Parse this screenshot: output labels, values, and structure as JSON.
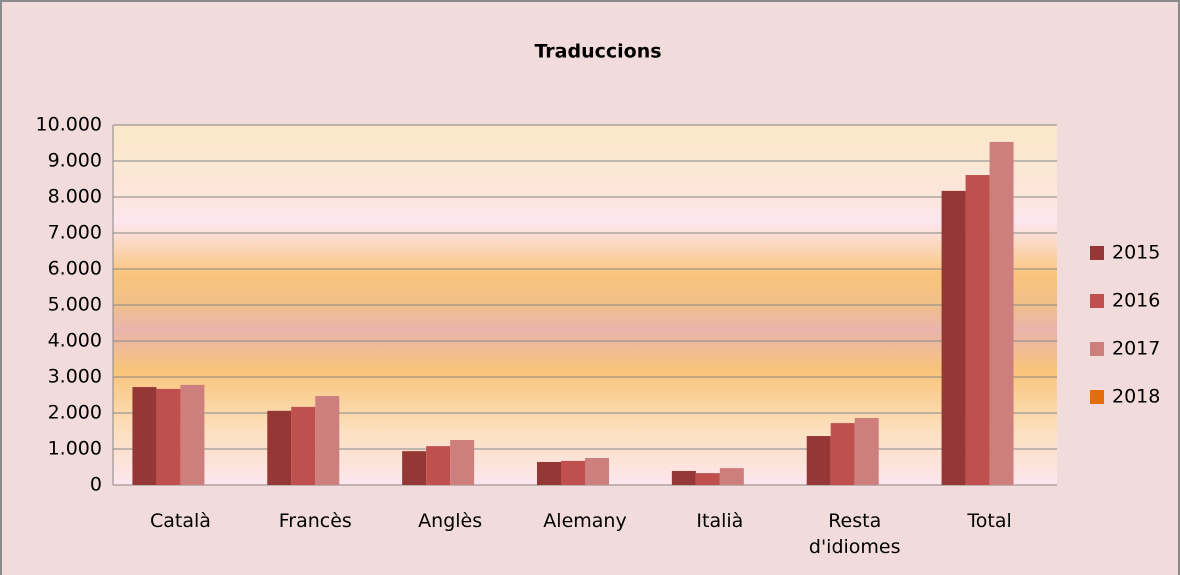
{
  "chart_data": {
    "type": "bar",
    "title": "Traduccions",
    "categories": [
      "Català",
      "Francès",
      "Anglès",
      "Alemany",
      "Italià",
      "Resta d'idiomes",
      "Total"
    ],
    "series": [
      {
        "name": "2015",
        "color": "#953735",
        "values": [
          2720,
          2060,
          940,
          640,
          390,
          1360,
          8170
        ]
      },
      {
        "name": "2016",
        "color": "#c0504d",
        "values": [
          2670,
          2170,
          1080,
          670,
          330,
          1720,
          8610
        ]
      },
      {
        "name": "2017",
        "color": "#cd7f7e",
        "values": [
          2780,
          2470,
          1250,
          750,
          470,
          1860,
          9530
        ]
      },
      {
        "name": "2018",
        "color": "#e46c0a",
        "values": [
          null,
          null,
          null,
          null,
          null,
          null,
          null
        ]
      }
    ],
    "ylim": [
      0,
      10000
    ],
    "yticks": [
      0,
      {
        "value": 1000,
        "label": "1.000"
      },
      {
        "value": 2000,
        "label": "2.000"
      },
      {
        "value": 3000,
        "label": "3.000"
      },
      {
        "value": 4000,
        "label": "4.000"
      },
      {
        "value": 5000,
        "label": "5.000"
      },
      {
        "value": 6000,
        "label": "6.000"
      },
      {
        "value": 7000,
        "label": "7.000"
      },
      {
        "value": 8000,
        "label": "8.000"
      },
      {
        "value": 9000,
        "label": "9.000"
      },
      {
        "value": 10000,
        "label": "10.000"
      }
    ],
    "grid": true,
    "legend": "right"
  }
}
